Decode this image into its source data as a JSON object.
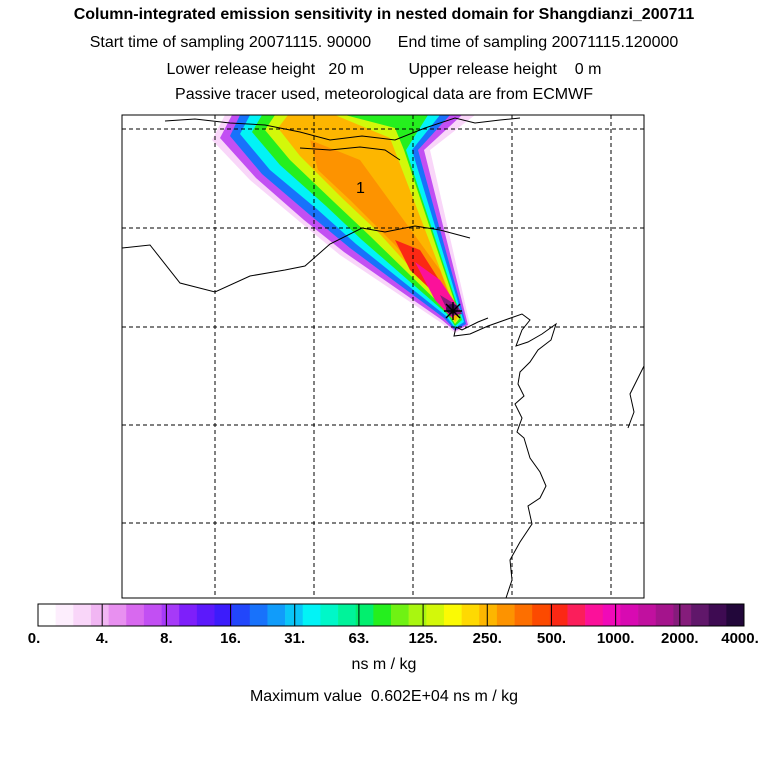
{
  "title": {
    "line1": "Column-integrated emission sensitivity in nested domain for Shangdianzi_200711",
    "start_label": "Start time of sampling",
    "start_value": "20071115. 90000",
    "end_label": "End time of sampling",
    "end_value": "20071115.120000",
    "lower_label": "Lower release height",
    "lower_value": "20 m",
    "upper_label": "Upper release height",
    "upper_value": "0 m",
    "line4": "Passive tracer used, meteorological data are from ECMWF"
  },
  "map": {
    "region_label": "1",
    "release_marker": "x-marker"
  },
  "colorbar": {
    "colors": [
      "#ffffff",
      "#fdeefd",
      "#f9d6f9",
      "#f1b6f3",
      "#e890f0",
      "#d869ef",
      "#c24ff3",
      "#a63af8",
      "#7e1ffa",
      "#5c19fb",
      "#3c1cfb",
      "#2247fb",
      "#1872fb",
      "#119cfa",
      "#0ac6f8",
      "#02f3f6",
      "#00f7c8",
      "#00f39a",
      "#02ef6e",
      "#25ef1e",
      "#6ff213",
      "#a9f610",
      "#d3f80a",
      "#fbfa04",
      "#fed902",
      "#fdb600",
      "#fd9300",
      "#fd6f00",
      "#fc4a00",
      "#fb2814",
      "#fb1e5b",
      "#fb119a",
      "#f00ab8",
      "#d80ab2",
      "#c1109f",
      "#a4148c",
      "#851c7b",
      "#60176a",
      "#3e0b52",
      "#22073a"
    ],
    "labels": [
      "0.",
      "4.",
      "8.",
      "16.",
      "31.",
      "63.",
      "125.",
      "250.",
      "500.",
      "1000.",
      "2000.",
      "4000."
    ],
    "units": "ns m / kg"
  },
  "max_value": {
    "label": "Maximum value",
    "value": "0.602E+04 ns m / kg"
  }
}
